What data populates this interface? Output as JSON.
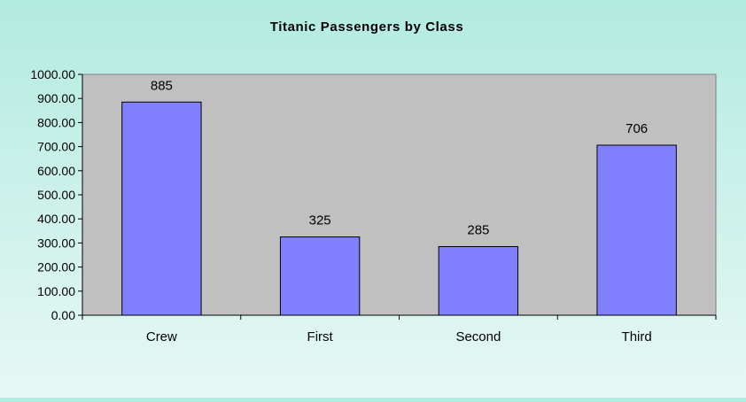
{
  "chart_data": {
    "type": "bar",
    "title": "Titanic Passengers by Class",
    "xlabel": "",
    "ylabel": "",
    "categories": [
      "Crew",
      "First",
      "Second",
      "Third"
    ],
    "values": [
      885,
      325,
      285,
      706
    ],
    "data_labels": [
      "885",
      "325",
      "285",
      "706"
    ],
    "ylim": [
      0,
      1000
    ],
    "y_ticks": [
      0,
      100,
      200,
      300,
      400,
      500,
      600,
      700,
      800,
      900,
      1000
    ],
    "y_tick_labels": [
      "0.00",
      "100.00",
      "200.00",
      "300.00",
      "400.00",
      "500.00",
      "600.00",
      "700.00",
      "800.00",
      "900.00",
      "1000.00"
    ],
    "grid": false,
    "legend": "none",
    "colors": {
      "bar_fill": "#8080ff",
      "bar_stroke": "#000000",
      "plot_background": "#c0c0c0",
      "plot_border": "#808080"
    }
  }
}
